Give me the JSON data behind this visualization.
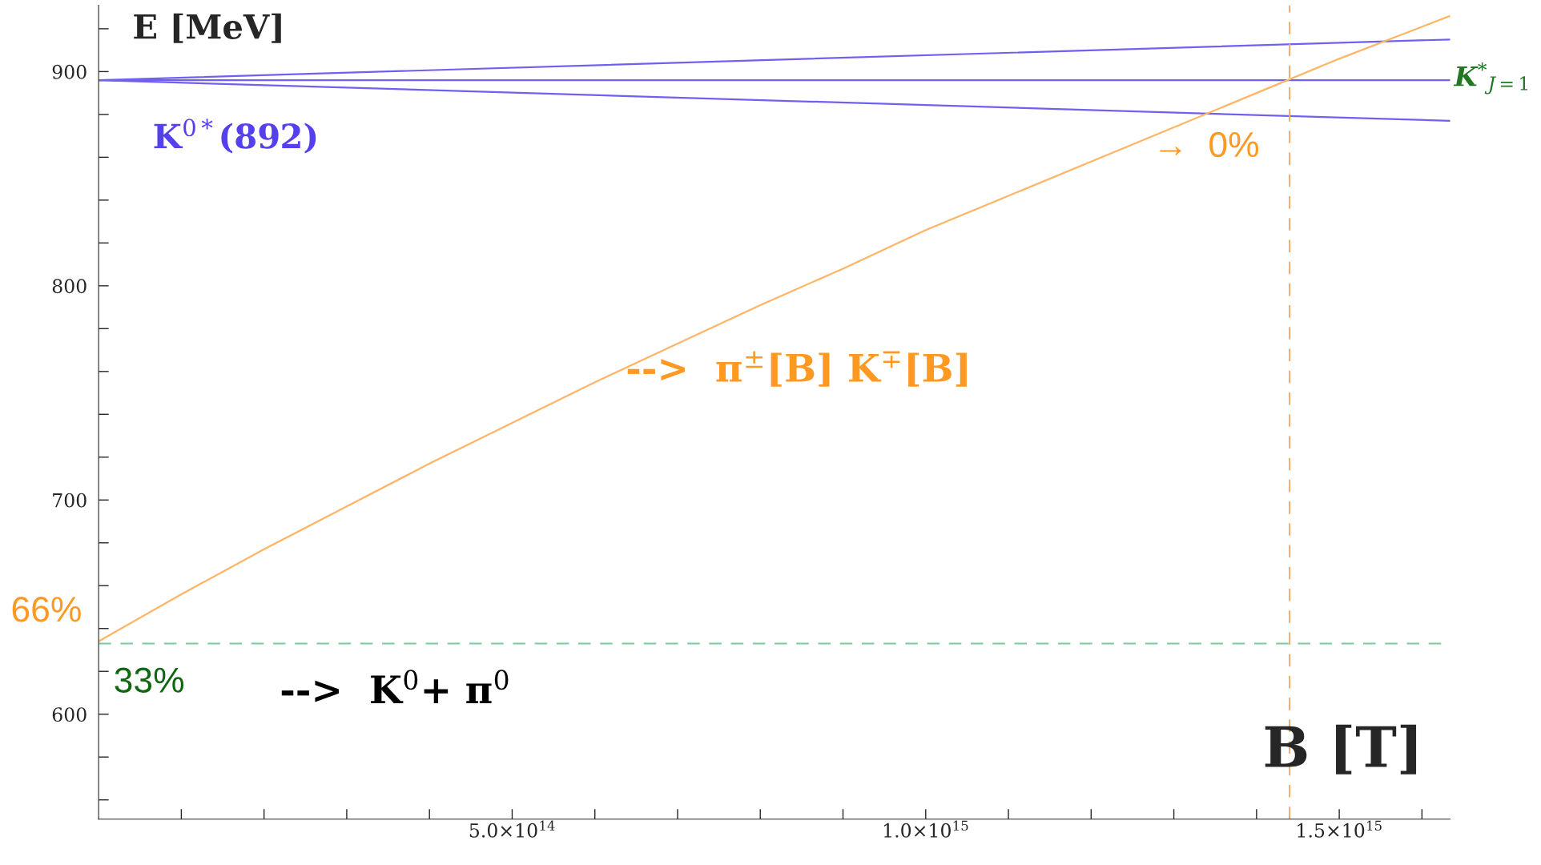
{
  "chart_data": {
    "type": "line",
    "xlabel": "B [T]",
    "ylabel": "E [MeV]",
    "xlim": [
      0,
      1634000000000000.0
    ],
    "ylim": [
      551,
      931
    ],
    "xticks": [
      {
        "value": 100000000000000.0,
        "label": null
      },
      {
        "value": 200000000000000.0,
        "label": null
      },
      {
        "value": 300000000000000.0,
        "label": null
      },
      {
        "value": 400000000000000.0,
        "label": null
      },
      {
        "value": 500000000000000.0,
        "label": "5.0×10$^{14}$"
      },
      {
        "value": 600000000000000.0,
        "label": null
      },
      {
        "value": 700000000000000.0,
        "label": null
      },
      {
        "value": 800000000000000.0,
        "label": null
      },
      {
        "value": 900000000000000.0,
        "label": null
      },
      {
        "value": 1000000000000000.0,
        "label": "1.0×10$^{15}$"
      },
      {
        "value": 1100000000000000.0,
        "label": null
      },
      {
        "value": 1200000000000000.0,
        "label": null
      },
      {
        "value": 1300000000000000.0,
        "label": null
      },
      {
        "value": 1400000000000000.0,
        "label": null
      },
      {
        "value": 1500000000000000.0,
        "label": "1.5×10$^{15}$"
      },
      {
        "value": 1600000000000000.0,
        "label": null
      }
    ],
    "yticks": [
      {
        "value": 560,
        "label": null
      },
      {
        "value": 580,
        "label": null
      },
      600,
      {
        "value": 620,
        "label": null
      },
      {
        "value": 640,
        "label": null
      },
      {
        "value": 660,
        "label": null
      },
      {
        "value": 680,
        "label": null
      },
      700,
      {
        "value": 720,
        "label": null
      },
      {
        "value": 740,
        "label": null
      },
      {
        "value": 760,
        "label": null
      },
      {
        "value": 780,
        "label": null
      },
      800,
      {
        "value": 820,
        "label": null
      },
      {
        "value": 840,
        "label": null
      },
      {
        "value": 860,
        "label": null
      },
      {
        "value": 880,
        "label": null
      },
      900,
      {
        "value": 920,
        "label": null
      }
    ],
    "grid": false,
    "legend": false,
    "marker": "none",
    "line_style": "solid",
    "series": [
      {
        "color": "#7060f0",
        "x": [
          0,
          1634000000000000.0
        ],
        "values": [
          896,
          915
        ]
      },
      {
        "color": "#7060f0",
        "x": [
          0,
          1634000000000000.0
        ],
        "values": [
          896,
          896
        ]
      },
      {
        "color": "#7060f0",
        "x": [
          0,
          1634000000000000.0
        ],
        "values": [
          896,
          877
        ]
      },
      {
        "color": "#ffb466",
        "x": [
          0,
          100000000000000.0,
          200000000000000.0,
          300000000000000.0,
          400000000000000.0,
          500000000000000.0,
          600000000000000.0,
          700000000000000.0,
          800000000000000.0,
          900000000000000.0,
          1000000000000000.0,
          1100000000000000.0,
          1200000000000000.0,
          1300000000000000.0,
          1400000000000000.0,
          1500000000000000.0,
          1634000000000000.0
        ],
        "values": [
          634,
          656,
          677,
          697,
          717,
          736,
          755,
          773,
          791,
          808,
          826,
          842,
          858,
          874,
          890,
          906,
          926
        ]
      }
    ],
    "ref_lines": [
      {
        "axis": "y",
        "value": 633,
        "color": "#77cc99",
        "line_style": "dashed"
      },
      {
        "axis": "x",
        "value": 1440000000000000.0,
        "color": "#f0a860",
        "line_style": "dashed"
      }
    ],
    "annotations": [
      "K$^{0*}$(892)",
      "K$^{*}$$_{J=1}$",
      "→  0%",
      "-->  π$^{±}$[B] K$^{∓}$[B]",
      "66%",
      "33%",
      "-->  K$^{0}$+ π$^{0}$"
    ]
  }
}
